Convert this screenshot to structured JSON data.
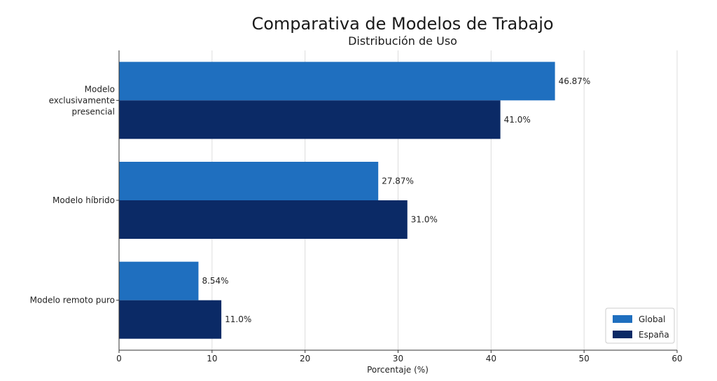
{
  "chart_data": {
    "type": "bar",
    "orientation": "horizontal",
    "title": "Comparativa de Modelos de Trabajo",
    "subtitle": "Distribución de Uso",
    "xlabel": "Porcentaje (%)",
    "ylabel": "",
    "xlim": [
      0,
      60
    ],
    "xticks": [
      0,
      10,
      20,
      30,
      40,
      50,
      60
    ],
    "grid": true,
    "legend_position": "bottom-right",
    "categories": [
      [
        "Modelo",
        "exclusivamente",
        "presencial"
      ],
      [
        "Modelo híbrido"
      ],
      [
        "Modelo remoto puro"
      ]
    ],
    "series": [
      {
        "name": "Global",
        "color": "#1f6fbf",
        "values": [
          46.87,
          27.87,
          8.54
        ],
        "labels": [
          "46.87%",
          "27.87%",
          "8.54%"
        ]
      },
      {
        "name": "España",
        "color": "#0b2a66",
        "values": [
          41.0,
          31.0,
          11.0
        ],
        "labels": [
          "41.0%",
          "31.0%",
          "11.0%"
        ]
      }
    ]
  }
}
